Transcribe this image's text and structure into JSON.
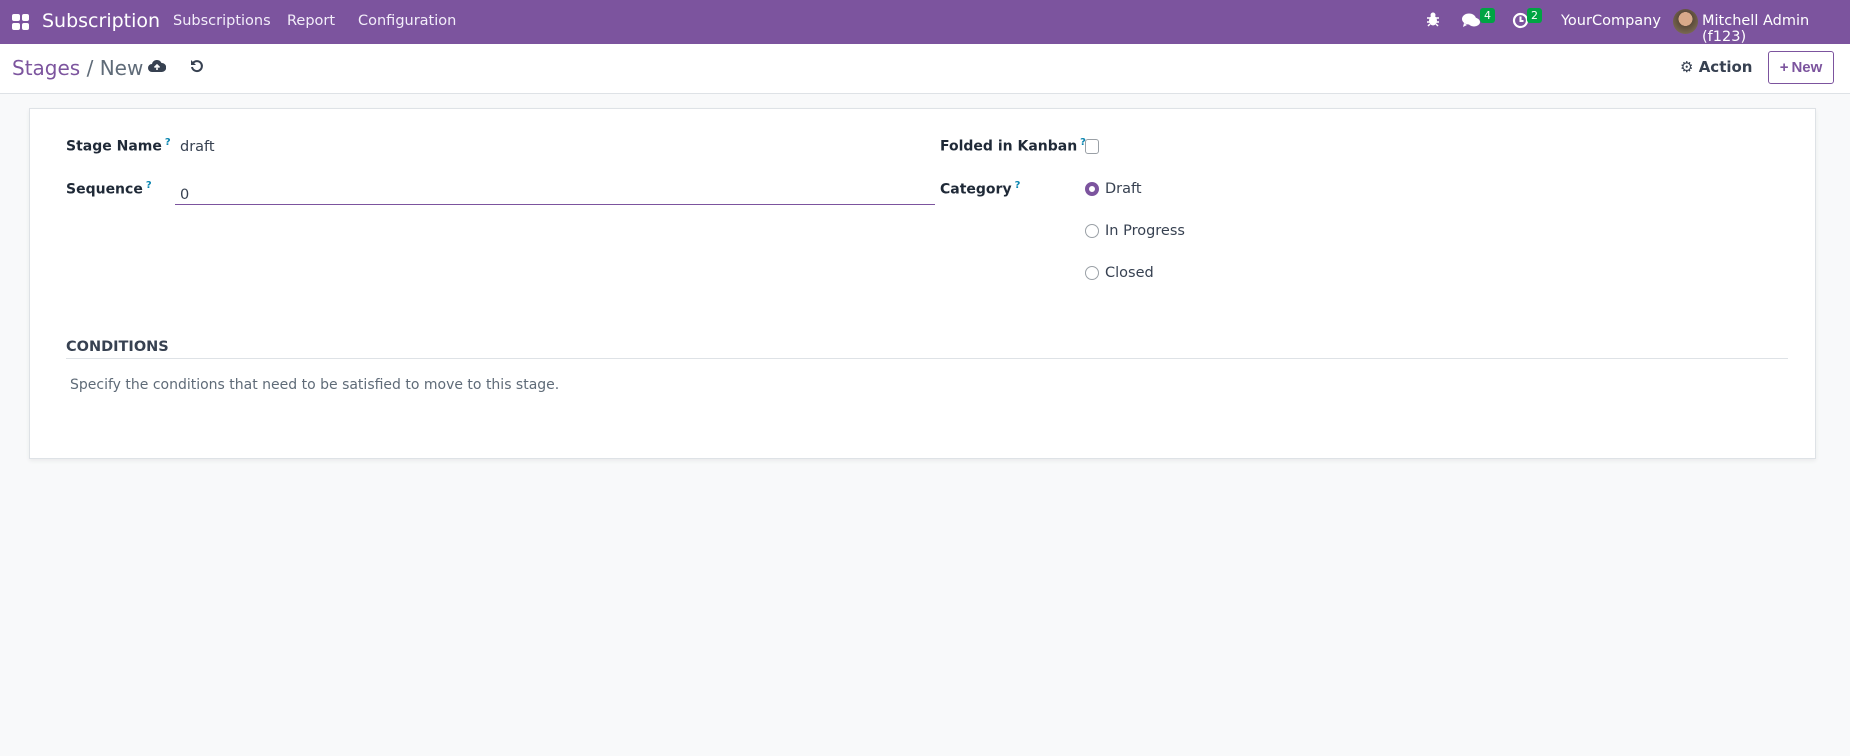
{
  "navbar": {
    "app_name": "Subscription",
    "menu": [
      "Subscriptions",
      "Report",
      "Configuration"
    ],
    "messages_count": "4",
    "activities_count": "2",
    "company": "YourCompany",
    "user": "Mitchell Admin (f123)"
  },
  "control_panel": {
    "breadcrumb_parent": "Stages",
    "breadcrumb_current": "New",
    "action_label": "Action",
    "new_label": "New"
  },
  "form": {
    "stage_name_label": "Stage Name",
    "stage_name_value": "draft",
    "sequence_label": "Sequence",
    "sequence_value": "0",
    "folded_label": "Folded in Kanban",
    "folded_checked": false,
    "category_label": "Category",
    "category_options": [
      "Draft",
      "In Progress",
      "Closed"
    ],
    "category_selected": "Draft",
    "help_mark": "?",
    "conditions_title": "CONDITIONS",
    "conditions_desc": "Specify the conditions that need to be satisfied to move to this stage."
  },
  "colors": {
    "brand": "#7c549e",
    "badge": "#00a443"
  }
}
